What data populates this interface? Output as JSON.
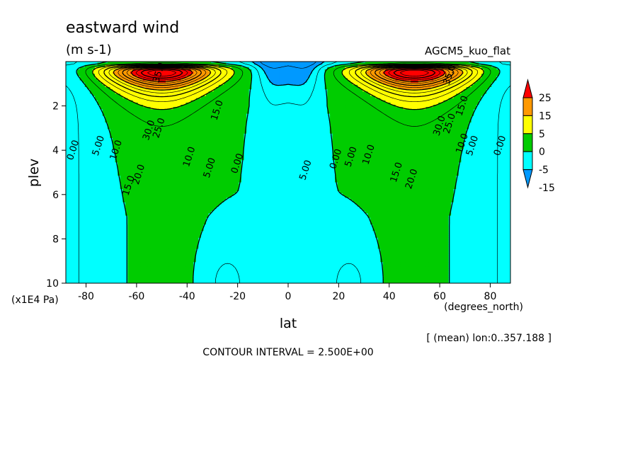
{
  "chart_data": {
    "type": "contour",
    "title": "eastward wind",
    "units": "(m s-1)",
    "experiment": "AGCM5_kuo_flat",
    "xlabel": "lat",
    "x_units": "(degrees_north)",
    "ylabel": "plev",
    "y_units": "(x1E4 Pa)",
    "xlim": [
      -88,
      88
    ],
    "ylim": [
      10,
      0
    ],
    "x_ticks": [
      -80,
      -60,
      -40,
      -20,
      0,
      20,
      40,
      60,
      80
    ],
    "y_ticks": [
      2,
      4,
      6,
      8,
      10
    ],
    "mean_note": "[ (mean) lon:0..357.188 ]",
    "contour_interval": "CONTOUR INTERVAL = 2.500E+00",
    "colorbar": {
      "labels": [
        "25",
        "15",
        "5",
        "0",
        "-5",
        "-15"
      ],
      "colors": [
        "#ff0000",
        "#ff9900",
        "#ffff00",
        "#00cc00",
        "#00ffff",
        "#0099ff"
      ]
    },
    "contour_labels": [
      {
        "text": "35.0",
        "lat": -51,
        "plev": 0.5
      },
      {
        "text": "30.0",
        "lat": -55,
        "plev": 3.1
      },
      {
        "text": "25.0",
        "lat": -51,
        "plev": 3.0
      },
      {
        "text": "15.0",
        "lat": -28,
        "plev": 2.2
      },
      {
        "text": "10.0",
        "lat": -39,
        "plev": 4.3
      },
      {
        "text": "5.00",
        "lat": -31,
        "plev": 4.8
      },
      {
        "text": "0.00",
        "lat": -20,
        "plev": 4.6
      },
      {
        "text": "0.00",
        "lat": -85,
        "plev": 4.0
      },
      {
        "text": "5.00",
        "lat": -75,
        "plev": 3.8
      },
      {
        "text": "10.0",
        "lat": -68,
        "plev": 4.0
      },
      {
        "text": "15.0",
        "lat": -63,
        "plev": 5.6
      },
      {
        "text": "20.0",
        "lat": -59,
        "plev": 5.1
      },
      {
        "text": "5.00",
        "lat": 7,
        "plev": 4.9
      },
      {
        "text": "0.00",
        "lat": 19,
        "plev": 4.4
      },
      {
        "text": "5.00",
        "lat": 25,
        "plev": 4.3
      },
      {
        "text": "10.0",
        "lat": 32,
        "plev": 4.2
      },
      {
        "text": "15.0",
        "lat": 43,
        "plev": 5.0
      },
      {
        "text": "20.0",
        "lat": 49,
        "plev": 5.3
      },
      {
        "text": "25.0",
        "lat": 64,
        "plev": 2.8
      },
      {
        "text": "30.0",
        "lat": 60,
        "plev": 2.9
      },
      {
        "text": "15.0",
        "lat": 69,
        "plev": 2.0
      },
      {
        "text": "35.0",
        "lat": 64,
        "plev": 0.6
      },
      {
        "text": "10.0",
        "lat": 69,
        "plev": 3.7
      },
      {
        "text": "5.00",
        "lat": 73,
        "plev": 3.8
      },
      {
        "text": "0.00",
        "lat": 84,
        "plev": 3.8
      }
    ]
  }
}
